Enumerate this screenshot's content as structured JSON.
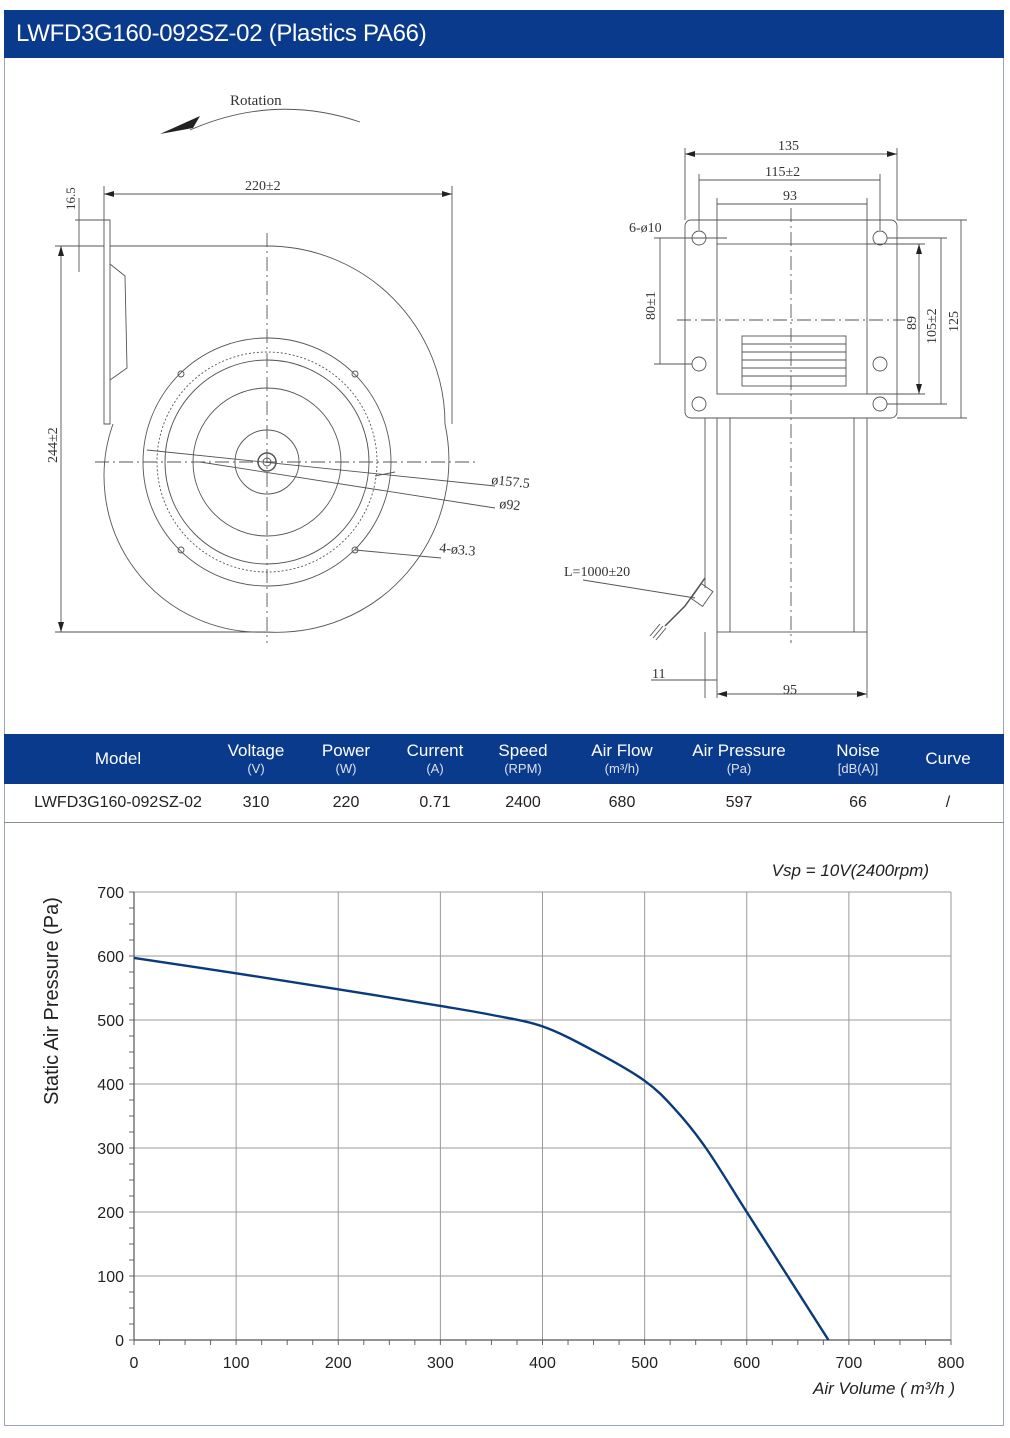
{
  "title": "LWFD3G160-092SZ-02 (Plastics PA66)",
  "drawing": {
    "rotation_label": "Rotation",
    "dim_top_width": "220±2",
    "dim_offset": "16.5",
    "dim_height": "244±2",
    "dim_d1": "ø157.5",
    "dim_d2": "ø92",
    "dim_holes": "4-ø3.3",
    "dim_135": "135",
    "dim_115": "115±2",
    "dim_93": "93",
    "dim_6holes": "6-ø10",
    "dim_80": "80±1",
    "dim_89": "89",
    "dim_105": "105±2",
    "dim_125": "125",
    "dim_cable": "L=1000±20",
    "dim_11": "11",
    "dim_95": "95"
  },
  "spec_table": {
    "headers": [
      {
        "label": "Model",
        "unit": ""
      },
      {
        "label": "Voltage",
        "unit": "(V)"
      },
      {
        "label": "Power",
        "unit": "(W)"
      },
      {
        "label": "Current",
        "unit": "(A)"
      },
      {
        "label": "Speed",
        "unit": "(RPM)"
      },
      {
        "label": "Air Flow",
        "unit": "(m³/h)"
      },
      {
        "label": "Air Pressure",
        "unit": "(Pa)"
      },
      {
        "label": "Noise",
        "unit": "[dB(A)]"
      },
      {
        "label": "Curve",
        "unit": ""
      }
    ],
    "row": [
      "LWFD3G160-092SZ-02",
      "310",
      "220",
      "0.71",
      "2400",
      "680",
      "597",
      "66",
      "/"
    ]
  },
  "chart_data": {
    "type": "line",
    "annotation": "Vsp = 10V(2400rpm)",
    "xlabel": "Air Volume ( m³/h )",
    "ylabel": "Static Air Pressure  (Pa)",
    "xlim": [
      0,
      800
    ],
    "ylim": [
      0,
      700
    ],
    "x_ticks": [
      0,
      100,
      200,
      300,
      400,
      500,
      600,
      700,
      800
    ],
    "y_ticks": [
      0,
      100,
      200,
      300,
      400,
      500,
      600,
      700
    ],
    "grid": true,
    "line_color": "#0a3a7a",
    "series": [
      {
        "x": [
          0,
          100,
          200,
          300,
          350,
          400,
          450,
          500,
          530,
          560,
          600,
          640,
          680
        ],
        "y": [
          597,
          573,
          548,
          522,
          508,
          490,
          452,
          405,
          360,
          300,
          200,
          100,
          0
        ]
      }
    ]
  }
}
